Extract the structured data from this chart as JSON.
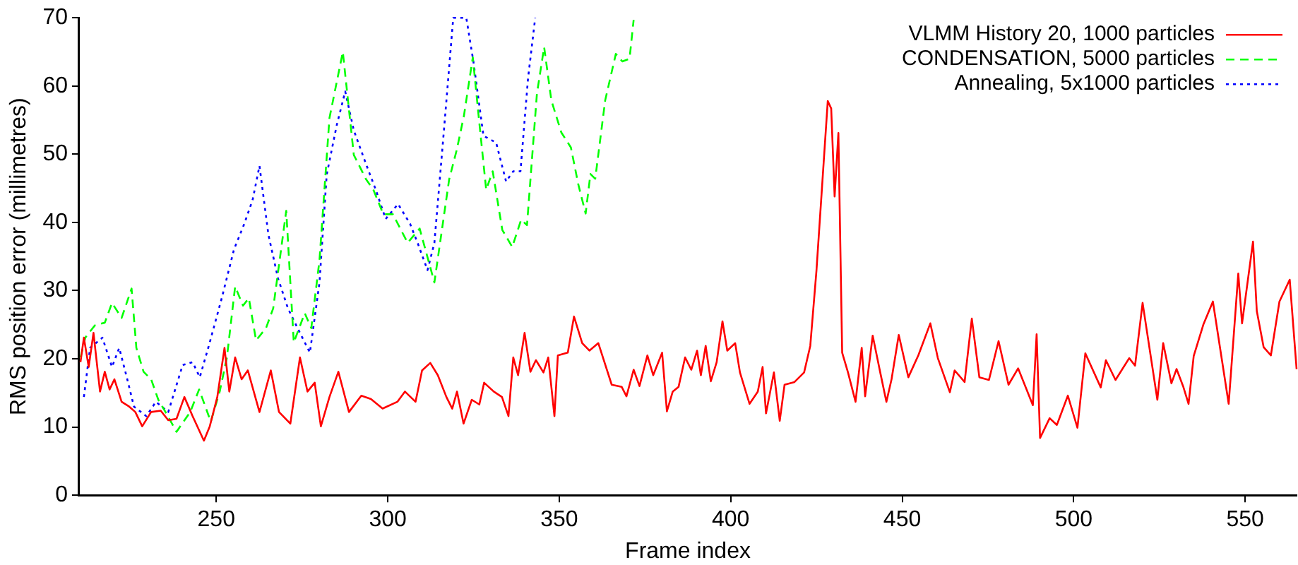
{
  "chart_data": {
    "type": "line",
    "xlabel": "Frame index",
    "ylabel": "RMS position error (millimetres)",
    "xlim": [
      210,
      565
    ],
    "xticks": [
      250,
      300,
      350,
      400,
      450,
      500,
      550
    ],
    "ylim": [
      0,
      70
    ],
    "yticks": [
      0,
      10,
      20,
      30,
      40,
      50,
      60,
      70
    ],
    "grid": false,
    "legend": "top right",
    "marker": "none",
    "series": [
      {
        "name": "VLMM History 20, 1000 particles",
        "color": "#ff0000",
        "line_style": "solid",
        "x": [
          210.4,
          211.4,
          212.8,
          214.2,
          216.1,
          217.5,
          218.9,
          220.3,
          222.4,
          224.6,
          226.4,
          228.4,
          231,
          233.8,
          236,
          238.4,
          240.7,
          243.1,
          246.4,
          248.1,
          250.3,
          252.4,
          253.8,
          255.5,
          257.4,
          259.2,
          262.6,
          265.9,
          268.3,
          271.6,
          274.4,
          276.6,
          278.7,
          280.5,
          283,
          285.6,
          288.7,
          292.3,
          295.1,
          298.5,
          302.8,
          305,
          308.1,
          310,
          312.4,
          314.6,
          317.1,
          318.8,
          320.2,
          322.1,
          324.5,
          326.7,
          328.1,
          330.9,
          333.3,
          335.2,
          336.6,
          338,
          339.9,
          341.6,
          343.2,
          345.4,
          346.8,
          348.6,
          349.6,
          352.5,
          354.3,
          356.7,
          358.8,
          361.4,
          365.3,
          368.2,
          369.6,
          371.7,
          373.4,
          375.7,
          377.4,
          380,
          381.4,
          383.1,
          384.8,
          386.7,
          388.5,
          390.2,
          391.3,
          392.7,
          394.2,
          395.9,
          397.6,
          399,
          401.3,
          402.7,
          405.5,
          407.9,
          409.3,
          410.3,
          412.6,
          414.3,
          415.7,
          418.6,
          421.4,
          423.2,
          425,
          428.3,
          429.3,
          430.3,
          431.4,
          432.5,
          434.2,
          436.4,
          438.2,
          439.2,
          441.4,
          443.6,
          445.4,
          446.9,
          449,
          451.8,
          454.7,
          458.2,
          460.4,
          463.9,
          465.3,
          468.2,
          470.3,
          472.5,
          475.3,
          478.1,
          481,
          483.8,
          488.1,
          489.2,
          490.2,
          493,
          495.1,
          498.3,
          501.1,
          503.4,
          507.9,
          509.4,
          512.2,
          516.2,
          517.9,
          520.1,
          524.4,
          526.1,
          528.5,
          530,
          531.9,
          533.5,
          535,
          537.8,
          540.6,
          545.2,
          548,
          549.1,
          552.3,
          553.4,
          555.4,
          557.5,
          560,
          563,
          565
        ],
        "values": [
          19.5,
          23.1,
          18.8,
          23.8,
          15.2,
          18.1,
          15.5,
          17,
          13.7,
          13,
          12.2,
          10.1,
          12.2,
          12.4,
          11,
          11.2,
          14.4,
          11.6,
          8,
          10.1,
          14.4,
          21.6,
          15.2,
          20.2,
          17,
          18.3,
          12.2,
          18.3,
          12.2,
          10.5,
          20.2,
          15.2,
          16.5,
          10.1,
          14.4,
          18.1,
          12.2,
          14.6,
          14.1,
          12.7,
          13.7,
          15.2,
          13.7,
          18.3,
          19.4,
          17.6,
          14.4,
          12.7,
          15.2,
          10.5,
          14,
          13.3,
          16.5,
          15.2,
          14.4,
          11.6,
          20.2,
          17.6,
          23.8,
          18.1,
          19.8,
          18,
          20.2,
          11.6,
          20.5,
          20.9,
          26.2,
          22.3,
          21.2,
          22.3,
          16.2,
          15.9,
          14.5,
          18.4,
          16,
          20.5,
          17.6,
          20.9,
          12.3,
          15.2,
          15.9,
          20.2,
          18.4,
          21.2,
          17.6,
          21.9,
          16.7,
          19.5,
          25.5,
          21.2,
          22.3,
          18,
          13.4,
          15.2,
          18.8,
          12,
          18,
          10.9,
          16.2,
          16.6,
          18,
          21.9,
          32.9,
          57.8,
          56.7,
          43.8,
          53.1,
          20.9,
          18,
          13.7,
          21.6,
          14.5,
          23.4,
          18,
          13.7,
          17,
          23.5,
          17.3,
          20.5,
          25.2,
          20.1,
          15.1,
          18.3,
          16.6,
          25.9,
          17.3,
          16.9,
          22.6,
          16.2,
          18.6,
          13.2,
          23.6,
          8.4,
          11.3,
          10.3,
          14.6,
          9.9,
          20.8,
          15.8,
          19.8,
          16.9,
          20.1,
          19,
          28.2,
          14,
          22.3,
          16.4,
          18.5,
          16,
          13.4,
          20.4,
          25,
          28.4,
          13.4,
          32.5,
          25.2,
          37.2,
          27,
          21.7,
          20.5,
          28.4,
          31.6,
          18.5
        ]
      },
      {
        "name": "CONDENSATION, 5000 particles",
        "color": "#00ff00",
        "line_style": "dashed",
        "x": [
          210.4,
          211.8,
          214.6,
          217.5,
          219.6,
          222.4,
          225.3,
          226.7,
          228.8,
          231,
          233.1,
          235.2,
          238.4,
          242.4,
          245,
          248.4,
          251,
          253.1,
          255.5,
          257.8,
          259.5,
          261.6,
          264.5,
          266.6,
          270.4,
          272.6,
          275.8,
          277.7,
          280.1,
          283,
          286.9,
          290.1,
          293.7,
          295.8,
          298.7,
          301.5,
          305.8,
          309.3,
          313.6,
          317.9,
          320.1,
          322.2,
          324.8,
          326.5,
          328.7,
          330.6,
          333.4,
          336.3,
          338.9,
          340.6,
          343.5,
          345.6,
          347.7,
          350.6,
          353.4,
          355.5,
          357.7,
          359.1,
          360.5,
          363.4,
          366.5,
          368.4,
          370.5,
          371.7
        ],
        "values": [
          20.2,
          23.1,
          24.9,
          25.3,
          28.2,
          26,
          30.3,
          21.6,
          18.1,
          17,
          14,
          12.2,
          9.3,
          12.2,
          15.5,
          10.8,
          15.2,
          20.2,
          30.6,
          27.8,
          28.9,
          22.7,
          24.5,
          27.4,
          41.7,
          22.4,
          26.7,
          24.5,
          34.5,
          55.3,
          65,
          49.9,
          46.3,
          44.8,
          41.2,
          41.2,
          37,
          39.1,
          31.2,
          46.3,
          50.6,
          55.6,
          64.2,
          55.6,
          44.8,
          47.5,
          38.9,
          36.4,
          40.4,
          39.6,
          58.9,
          65.7,
          57.9,
          53.2,
          51,
          45.7,
          41.3,
          47.1,
          46.4,
          57.9,
          64.7,
          63.6,
          64,
          69.7
        ]
      },
      {
        "name": "Annealing, 5x1000 particles",
        "color": "#0000ff",
        "line_style": "dotted",
        "x": [
          211.4,
          213.2,
          216.8,
          219.6,
          221.7,
          223.9,
          226,
          229.6,
          232.4,
          236,
          240.2,
          243.1,
          245.2,
          248.1,
          251.6,
          255.2,
          258.1,
          260.6,
          262.6,
          265.2,
          268,
          270.9,
          273.7,
          277.3,
          280.1,
          282.2,
          285.1,
          287.6,
          290.1,
          293.7,
          296.5,
          299.4,
          303,
          306.5,
          308.7,
          311.6,
          313.6,
          316.5,
          319.1,
          322.9,
          325,
          327.9,
          331.6,
          334.5,
          336.6,
          338.7,
          340.9,
          343
        ],
        "values": [
          14.4,
          21.6,
          23.1,
          18.8,
          21.6,
          17.3,
          13,
          11.6,
          13.7,
          12.2,
          19.1,
          19.5,
          17.3,
          22.4,
          28.9,
          36.1,
          39.7,
          43.3,
          48.3,
          38.2,
          31.8,
          27.4,
          24.5,
          20.9,
          31.2,
          47,
          54.2,
          59.2,
          53.5,
          48.5,
          44.8,
          40.5,
          42.7,
          39.8,
          37,
          33,
          37,
          54.2,
          70,
          70,
          63.5,
          52.7,
          51.7,
          46,
          47.5,
          47.5,
          61.1,
          70
        ]
      }
    ]
  }
}
